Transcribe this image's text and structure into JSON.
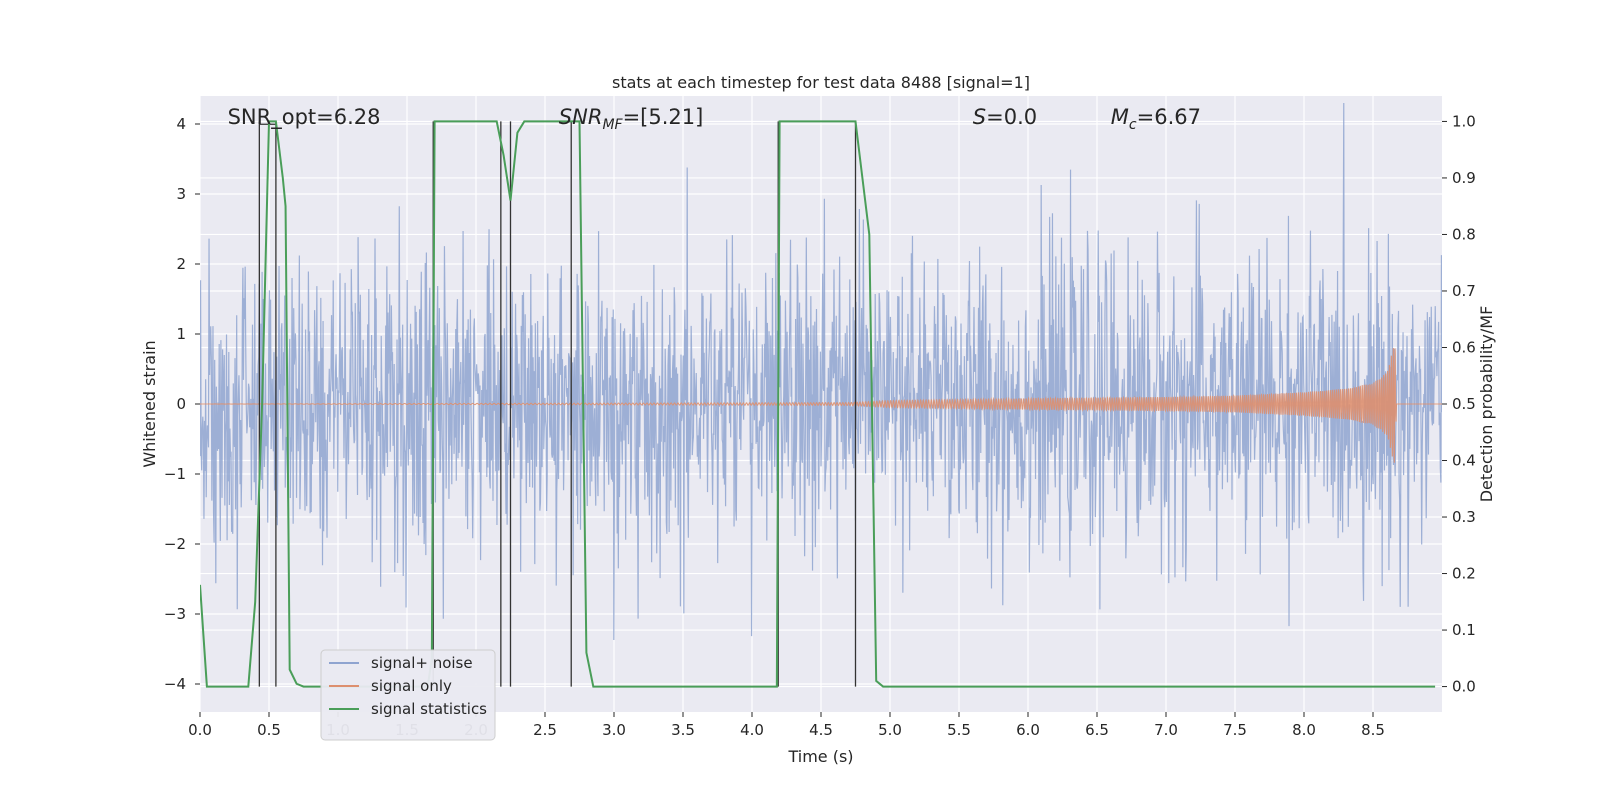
{
  "chart_data": {
    "type": "line",
    "title": "stats at each timestep for test data 8488 [signal=1]",
    "xlabel": "Time (s)",
    "ylabel": "Whitened strain",
    "y2label": "Detection probability/MF",
    "xlim": [
      0,
      9.0
    ],
    "ylim": [
      -4.4,
      4.4
    ],
    "y2lim": [
      -0.045,
      1.045
    ],
    "xticks": [
      0.0,
      0.5,
      1.0,
      1.5,
      2.0,
      2.5,
      3.0,
      3.5,
      4.0,
      4.5,
      5.0,
      5.5,
      6.0,
      6.5,
      7.0,
      7.5,
      8.0,
      8.5
    ],
    "xtick_labels": [
      "0.0",
      "0.5",
      "1.0",
      "1.5",
      "2.0",
      "2.5",
      "3.0",
      "3.5",
      "4.0",
      "4.5",
      "5.0",
      "5.5",
      "6.0",
      "6.5",
      "7.0",
      "7.5",
      "8.0",
      "8.5"
    ],
    "yticks": [
      4,
      3,
      2,
      1,
      0,
      -1,
      -2,
      -3,
      -4
    ],
    "ytick_labels": [
      "4",
      "3",
      "2",
      "1",
      "0",
      "−1",
      "−2",
      "−3",
      "−4"
    ],
    "y2ticks": [
      1.0,
      0.9,
      0.8,
      0.7,
      0.6,
      0.5,
      0.4,
      0.3,
      0.2,
      0.1,
      0.0
    ],
    "y2tick_labels": [
      "1.0",
      "0.9",
      "0.8",
      "0.7",
      "0.6",
      "0.5",
      "0.4",
      "0.3",
      "0.2",
      "0.1",
      "0.0"
    ],
    "grid": true,
    "legend_position": "bottom-left",
    "annotations": [
      {
        "key": "snr-opt",
        "text": "SNR_opt=6.28",
        "x": 0.2
      },
      {
        "key": "snr-mf",
        "text": "SNR_MF=[5.21]",
        "x": 2.6
      },
      {
        "key": "s-value",
        "text": "S=0.0",
        "x": 5.6
      },
      {
        "key": "mc-value",
        "text": "M_c=6.67",
        "x": 6.6
      }
    ],
    "series": [
      {
        "name": "signal+ noise",
        "color": "#8fa4d0",
        "axis": "left",
        "sampling": "dense noise, amplitude ~ ±2 typical, peaks to ±4",
        "amplitude_envelope": [
          [
            0.0,
            2.0
          ],
          [
            9.0,
            2.0
          ]
        ]
      },
      {
        "name": "signal only",
        "color": "#dd8f6f",
        "axis": "left",
        "sampling": "chirp, amplitude grows toward merger",
        "envelope": [
          [
            0.0,
            0.0
          ],
          [
            4.7,
            0.02
          ],
          [
            5.0,
            0.05
          ],
          [
            6.0,
            0.08
          ],
          [
            7.0,
            0.1
          ],
          [
            7.5,
            0.12
          ],
          [
            8.0,
            0.17
          ],
          [
            8.3,
            0.22
          ],
          [
            8.5,
            0.3
          ],
          [
            8.6,
            0.45
          ],
          [
            8.66,
            0.9
          ],
          [
            8.67,
            0.0
          ],
          [
            9.0,
            0.0
          ]
        ]
      },
      {
        "name": "signal statistics",
        "color": "#4a9e59",
        "axis": "right",
        "x": [
          0.0,
          0.05,
          0.1,
          0.15,
          0.2,
          0.25,
          0.3,
          0.35,
          0.4,
          0.45,
          0.5,
          0.55,
          0.6,
          0.62,
          0.65,
          0.7,
          0.75,
          0.8,
          0.85,
          0.9,
          0.95,
          1.0,
          1.05,
          1.1,
          1.15,
          1.2,
          1.25,
          1.3,
          1.35,
          1.4,
          1.45,
          1.5,
          1.55,
          1.6,
          1.65,
          1.68,
          1.7,
          1.75,
          1.8,
          1.85,
          1.9,
          1.95,
          2.0,
          2.05,
          2.1,
          2.15,
          2.2,
          2.25,
          2.3,
          2.35,
          2.4,
          2.45,
          2.5,
          2.55,
          2.6,
          2.65,
          2.7,
          2.75,
          2.8,
          2.85,
          2.9,
          2.95,
          3.0,
          3.05,
          3.1,
          3.15,
          3.2,
          3.25,
          3.3,
          3.35,
          3.4,
          3.45,
          3.5,
          3.55,
          3.6,
          3.65,
          3.7,
          3.75,
          3.8,
          3.85,
          3.9,
          3.95,
          4.0,
          4.05,
          4.1,
          4.15,
          4.18,
          4.2,
          4.25,
          4.3,
          4.35,
          4.4,
          4.45,
          4.5,
          4.55,
          4.6,
          4.65,
          4.7,
          4.75,
          4.8,
          4.85,
          4.9,
          4.95,
          5.0,
          5.1,
          5.2,
          5.3,
          5.4,
          5.5,
          5.6,
          5.7,
          5.8,
          5.9,
          6.0,
          6.2,
          6.4,
          6.6,
          6.8,
          7.0,
          7.2,
          7.4,
          7.6,
          7.8,
          8.0,
          8.2,
          8.4,
          8.6,
          8.8,
          8.95
        ],
        "y": [
          0.18,
          0.0,
          0.0,
          0.0,
          0.0,
          0.0,
          0.0,
          0.0,
          0.15,
          0.5,
          1.0,
          1.0,
          0.9,
          0.85,
          0.03,
          0.005,
          0.0,
          0.0,
          0.0,
          0.0,
          0.0,
          0.0,
          0.0,
          0.0,
          0.0,
          0.0,
          0.0,
          0.0,
          0.0,
          0.0,
          0.0,
          0.0,
          0.0,
          0.0,
          0.0,
          0.05,
          1.0,
          1.0,
          1.0,
          1.0,
          1.0,
          1.0,
          1.0,
          1.0,
          1.0,
          1.0,
          0.94,
          0.86,
          0.98,
          1.0,
          1.0,
          1.0,
          1.0,
          1.0,
          1.0,
          1.0,
          1.0,
          1.0,
          0.06,
          0.0,
          0.0,
          0.0,
          0.0,
          0.0,
          0.0,
          0.0,
          0.0,
          0.0,
          0.0,
          0.0,
          0.0,
          0.0,
          0.0,
          0.0,
          0.0,
          0.0,
          0.0,
          0.0,
          0.0,
          0.0,
          0.0,
          0.0,
          0.0,
          0.0,
          0.0,
          0.0,
          0.0,
          1.0,
          1.0,
          1.0,
          1.0,
          1.0,
          1.0,
          1.0,
          1.0,
          1.0,
          1.0,
          1.0,
          1.0,
          0.9,
          0.8,
          0.01,
          0.0,
          0.0,
          0.0,
          0.0,
          0.0,
          0.0,
          0.0,
          0.0,
          0.0,
          0.0,
          0.0,
          0.0,
          0.0,
          0.0,
          0.0,
          0.0,
          0.0,
          0.0,
          0.0,
          0.0,
          0.0,
          0.0,
          0.0,
          0.0,
          0.0,
          0.0,
          0.0
        ]
      }
    ],
    "vertical_markers_x": [
      0.43,
      0.55,
      1.69,
      2.18,
      2.25,
      2.69,
      4.19,
      4.75
    ],
    "colors": {
      "axes_bg": "#eaeaf2",
      "grid": "#ffffff",
      "marker_line": "#333333"
    }
  }
}
